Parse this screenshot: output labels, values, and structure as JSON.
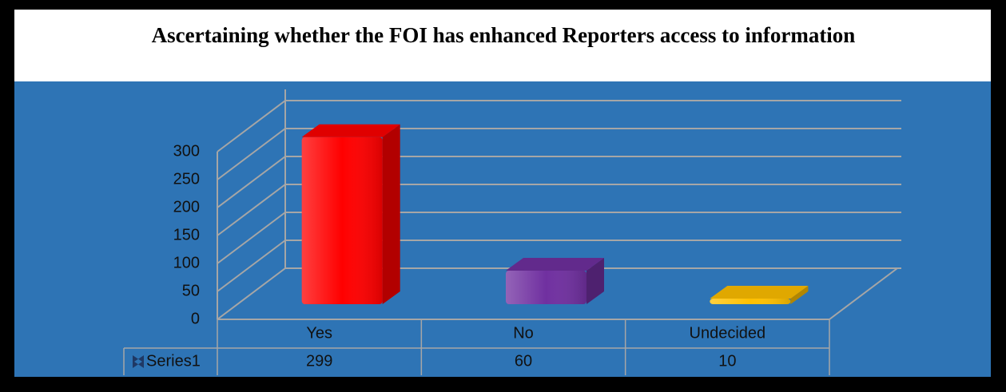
{
  "chart_data": {
    "type": "bar3d",
    "title": "Ascertaining whether the FOI has enhanced Reporters access to information",
    "categories": [
      "Yes",
      "No",
      "Undecided"
    ],
    "series": [
      {
        "name": "Series1",
        "values": [
          299,
          60,
          10
        ],
        "colors": [
          "#ff0000",
          "#7030a0",
          "#ffc000"
        ]
      }
    ],
    "ylim": [
      0,
      300
    ],
    "yticks": [
      0,
      50,
      100,
      150,
      200,
      250,
      300
    ],
    "grid": true
  }
}
